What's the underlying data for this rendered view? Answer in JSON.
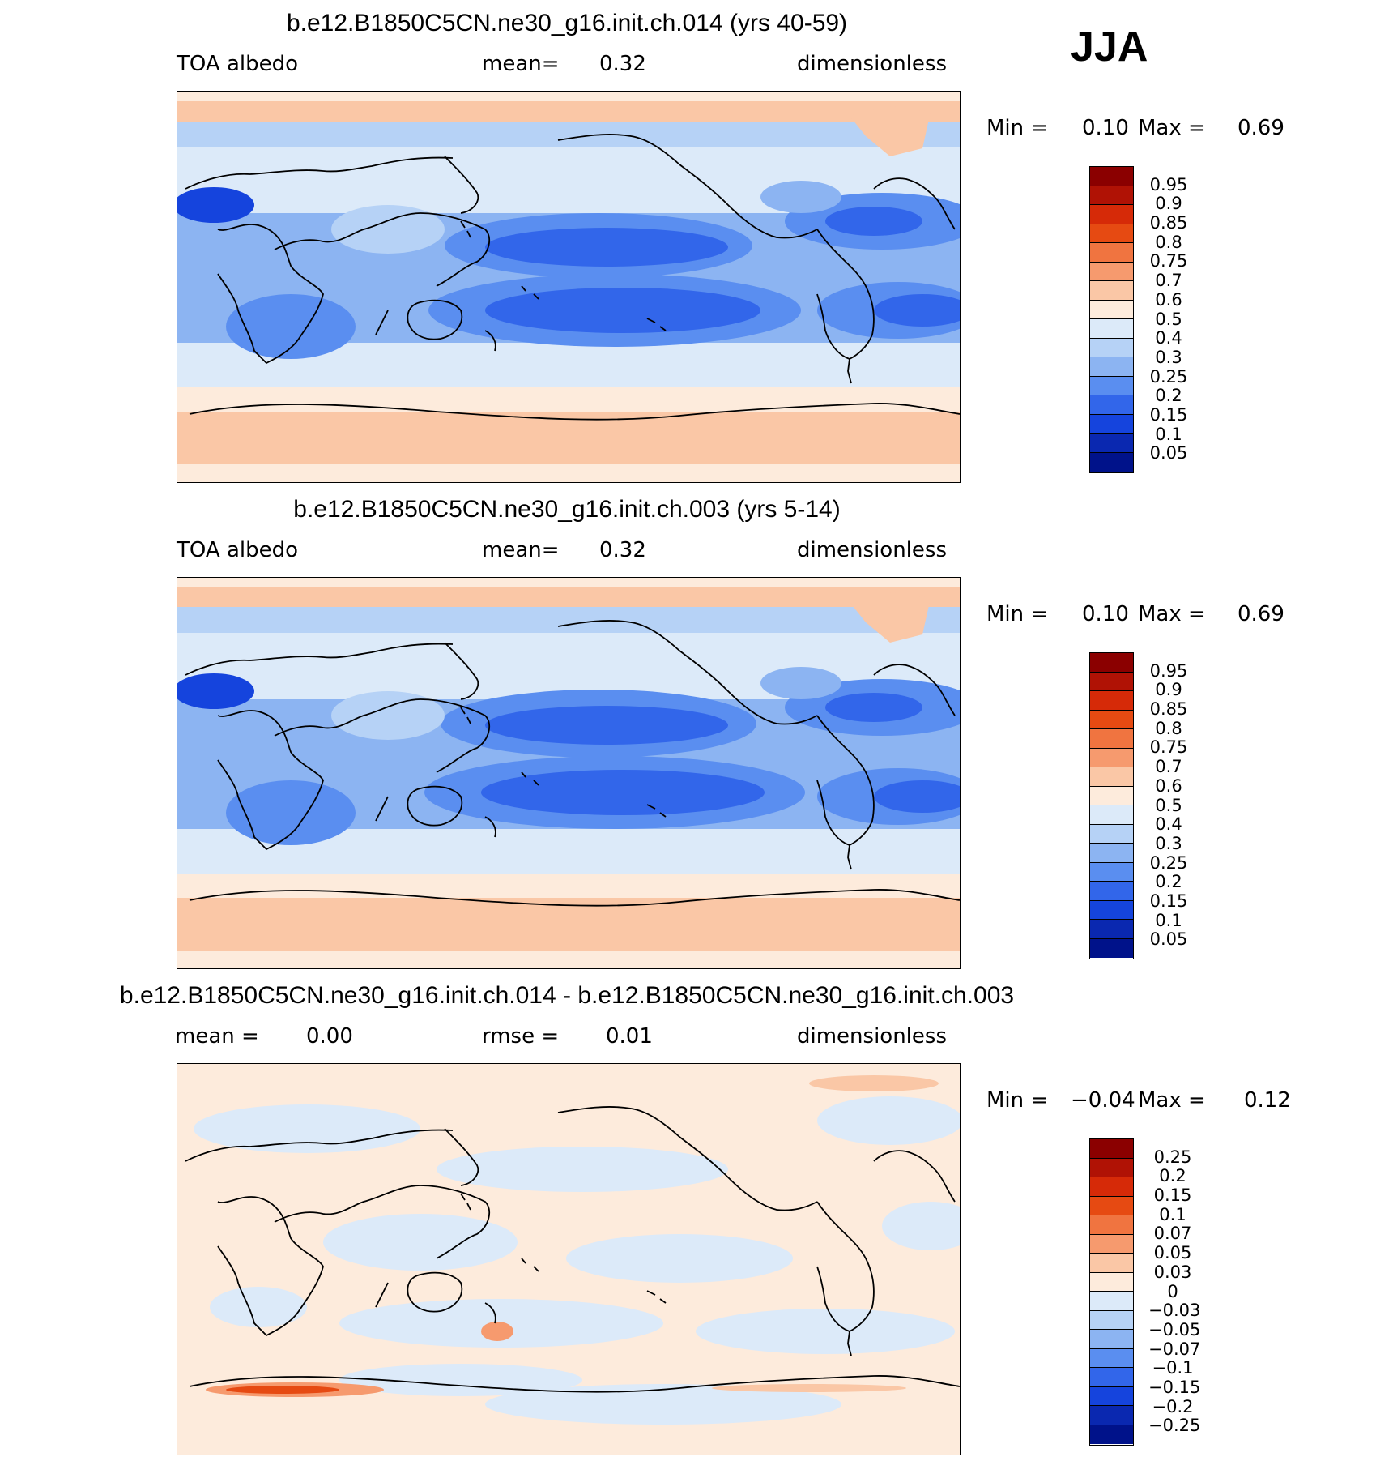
{
  "season": "JJA",
  "panels": [
    {
      "title": "b.e12.B1850C5CN.ne30_g16.init.ch.014 (yrs 40-59)",
      "left_label": "TOA albedo",
      "middle_label": "mean=",
      "middle_value": "0.32",
      "right_label": "dimensionless",
      "min_label": "Min =",
      "min_value": "0.10",
      "max_label": "Max =",
      "max_value": "0.69",
      "colorbar": {
        "labels": [
          "0.95",
          "0.9",
          "0.85",
          "0.8",
          "0.75",
          "0.7",
          "0.6",
          "0.5",
          "0.4",
          "0.3",
          "0.25",
          "0.2",
          "0.15",
          "0.1",
          "0.05"
        ],
        "colors": [
          "#8b0000",
          "#b01205",
          "#d62a08",
          "#e64a12",
          "#f07440",
          "#f69a6e",
          "#fac7a6",
          "#fdebdc",
          "#dceaf9",
          "#b6d2f6",
          "#8cb4f2",
          "#5a8ef0",
          "#3266ea",
          "#1544dd",
          "#0a28b0",
          "#00128a"
        ]
      }
    },
    {
      "title": "b.e12.B1850C5CN.ne30_g16.init.ch.003 (yrs 5-14)",
      "left_label": "TOA albedo",
      "middle_label": "mean=",
      "middle_value": "0.32",
      "right_label": "dimensionless",
      "min_label": "Min =",
      "min_value": "0.10",
      "max_label": "Max =",
      "max_value": "0.69",
      "colorbar": {
        "labels": [
          "0.95",
          "0.9",
          "0.85",
          "0.8",
          "0.75",
          "0.7",
          "0.6",
          "0.5",
          "0.4",
          "0.3",
          "0.25",
          "0.2",
          "0.15",
          "0.1",
          "0.05"
        ],
        "colors": [
          "#8b0000",
          "#b01205",
          "#d62a08",
          "#e64a12",
          "#f07440",
          "#f69a6e",
          "#fac7a6",
          "#fdebdc",
          "#dceaf9",
          "#b6d2f6",
          "#8cb4f2",
          "#5a8ef0",
          "#3266ea",
          "#1544dd",
          "#0a28b0",
          "#00128a"
        ]
      }
    },
    {
      "title": "b.e12.B1850C5CN.ne30_g16.init.ch.014 - b.e12.B1850C5CN.ne30_g16.init.ch.003",
      "left_label": "mean =",
      "left_value": "0.00",
      "middle_label": "rmse =",
      "middle_value": "0.01",
      "right_label": "dimensionless",
      "min_label": "Min =",
      "min_value": "−0.04",
      "max_label": "Max =",
      "max_value": "0.12",
      "colorbar": {
        "labels": [
          "0.25",
          "0.2",
          "0.15",
          "0.1",
          "0.07",
          "0.05",
          "0.03",
          "0",
          "−0.03",
          "−0.05",
          "−0.07",
          "−0.1",
          "−0.15",
          "−0.2",
          "−0.25"
        ],
        "colors": [
          "#8b0000",
          "#b01205",
          "#d62a08",
          "#e64a12",
          "#f07440",
          "#f69a6e",
          "#fac7a6",
          "#fdebdc",
          "#dceaf9",
          "#b6d2f6",
          "#8cb4f2",
          "#5a8ef0",
          "#3266ea",
          "#1544dd",
          "#0a28b0",
          "#00128a"
        ]
      }
    }
  ]
}
